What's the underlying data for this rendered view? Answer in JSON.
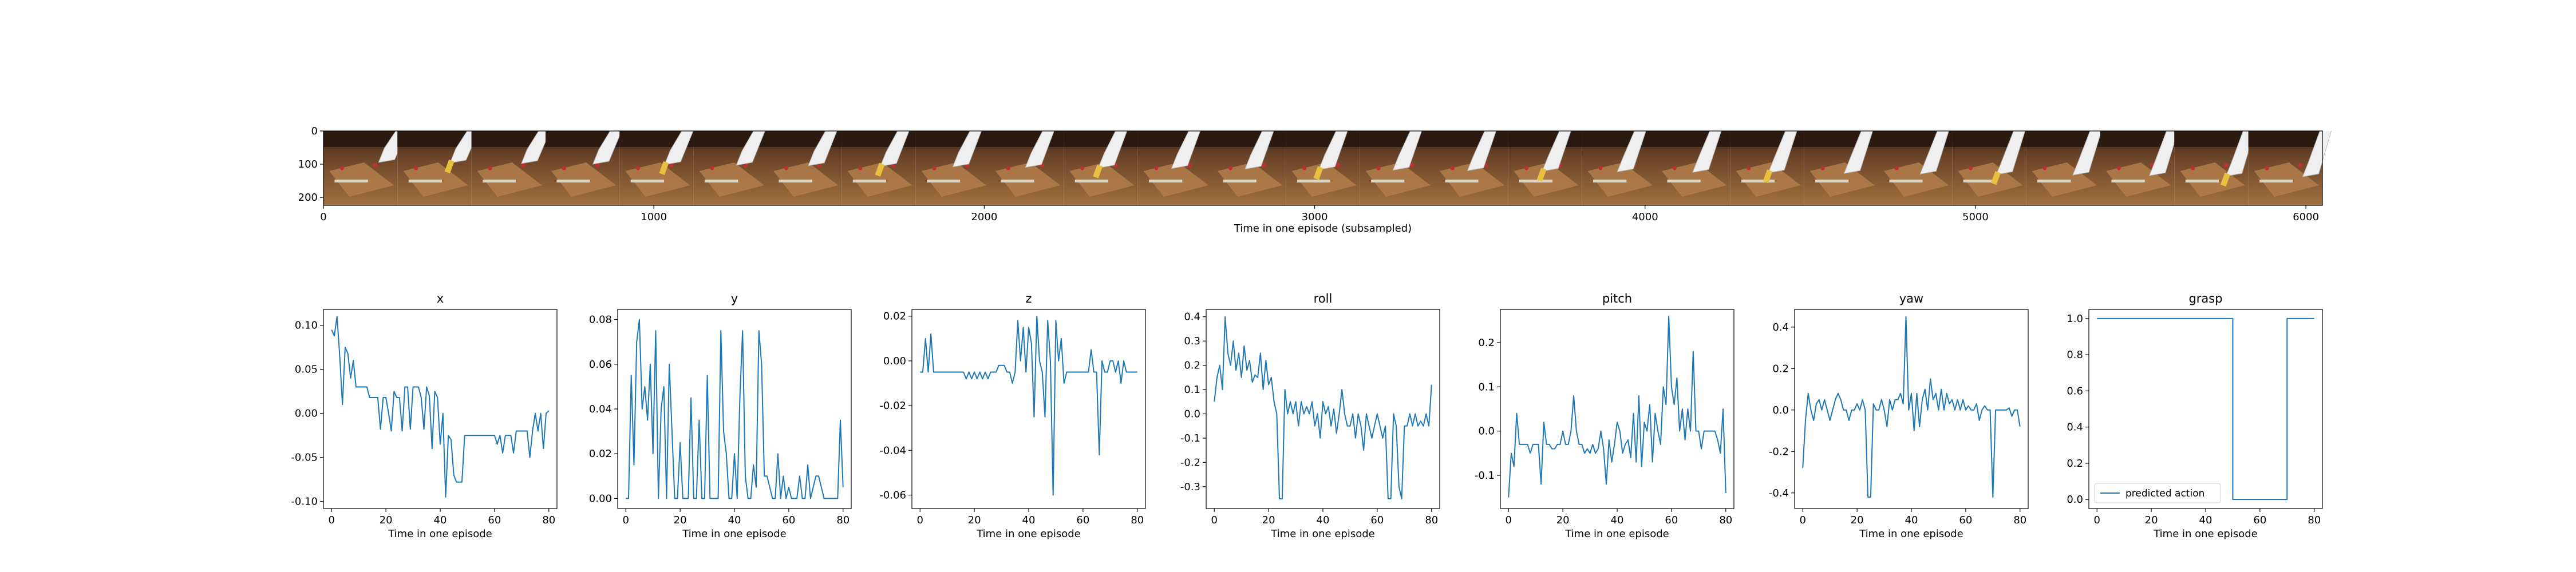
{
  "colors": {
    "line": "#1f77b4",
    "axes": "#000000",
    "background": "#ffffff"
  },
  "filmstrip": {
    "xlabel": "Time in one episode (subsampled)",
    "xticks": [
      "0",
      "1000",
      "2000",
      "3000",
      "4000",
      "5000",
      "6000"
    ],
    "yticks": [
      "0",
      "100",
      "200"
    ],
    "frame_count": 27,
    "image_desc": "camera frames of robot gripper over wooden table"
  },
  "chart_data": [
    {
      "type": "line",
      "title": "x",
      "xlabel": "Time in one episode",
      "ylabel": "",
      "xlim": [
        -3,
        83
      ],
      "ylim": [
        -0.108,
        0.118
      ],
      "xticks": [
        "0",
        "20",
        "40",
        "60",
        "80"
      ],
      "yticks": [
        "-0.10",
        "-0.05",
        "0.00",
        "0.05",
        "0.10"
      ],
      "x": [
        0,
        1,
        2,
        3,
        4,
        5,
        6,
        7,
        8,
        9,
        10,
        11,
        12,
        13,
        14,
        15,
        16,
        17,
        18,
        19,
        20,
        21,
        22,
        23,
        24,
        25,
        26,
        27,
        28,
        29,
        30,
        31,
        32,
        33,
        34,
        35,
        36,
        37,
        38,
        39,
        40,
        41,
        42,
        43,
        44,
        45,
        46,
        47,
        48,
        49,
        50,
        51,
        52,
        53,
        54,
        55,
        56,
        57,
        58,
        59,
        60,
        61,
        62,
        63,
        64,
        65,
        66,
        67,
        68,
        69,
        70,
        71,
        72,
        73,
        74,
        75,
        76,
        77,
        78,
        79,
        80
      ],
      "series": [
        {
          "values": [
            0.095,
            0.088,
            0.11,
            0.065,
            0.01,
            0.075,
            0.068,
            0.04,
            0.06,
            0.03,
            0.03,
            0.03,
            0.03,
            0.03,
            0.018,
            0.018,
            0.018,
            0.018,
            -0.018,
            0.018,
            0.018,
            0.0,
            -0.02,
            0.025,
            0.018,
            0.018,
            -0.02,
            0.03,
            0.03,
            -0.018,
            0.03,
            0.03,
            0.03,
            0.018,
            -0.018,
            0.03,
            0.02,
            -0.04,
            0.025,
            0.018,
            -0.035,
            0.0,
            -0.095,
            -0.025,
            -0.03,
            -0.07,
            -0.078,
            -0.078,
            -0.078,
            -0.025,
            -0.025,
            -0.025,
            -0.025,
            -0.025,
            -0.025,
            -0.025,
            -0.025,
            -0.025,
            -0.025,
            -0.025,
            -0.025,
            -0.035,
            -0.025,
            -0.045,
            -0.025,
            -0.025,
            -0.025,
            -0.045,
            -0.02,
            -0.02,
            -0.02,
            -0.02,
            -0.02,
            -0.05,
            -0.02,
            0.0,
            -0.02,
            0.0,
            -0.04,
            0.0,
            0.003
          ]
        }
      ]
    },
    {
      "type": "line",
      "title": "y",
      "xlabel": "Time in one episode",
      "ylabel": "",
      "xlim": [
        -3,
        83
      ],
      "ylim": [
        -0.0045,
        0.0845
      ],
      "xticks": [
        "0",
        "20",
        "40",
        "60",
        "80"
      ],
      "yticks": [
        "0.00",
        "0.02",
        "0.04",
        "0.06",
        "0.08"
      ],
      "x": [
        0,
        1,
        2,
        3,
        4,
        5,
        6,
        7,
        8,
        9,
        10,
        11,
        12,
        13,
        14,
        15,
        16,
        17,
        18,
        19,
        20,
        21,
        22,
        23,
        24,
        25,
        26,
        27,
        28,
        29,
        30,
        31,
        32,
        33,
        34,
        35,
        36,
        37,
        38,
        39,
        40,
        41,
        42,
        43,
        44,
        45,
        46,
        47,
        48,
        49,
        50,
        51,
        52,
        53,
        54,
        55,
        56,
        57,
        58,
        59,
        60,
        61,
        62,
        63,
        64,
        65,
        66,
        67,
        68,
        69,
        70,
        71,
        72,
        73,
        74,
        75,
        76,
        77,
        78,
        79,
        80
      ],
      "series": [
        {
          "values": [
            0.0,
            0.0,
            0.055,
            0.015,
            0.07,
            0.08,
            0.04,
            0.05,
            0.035,
            0.06,
            0.02,
            0.075,
            0.0,
            0.04,
            0.05,
            0.0,
            0.06,
            0.03,
            0.0,
            0.0,
            0.025,
            0.0,
            0.0,
            0.0,
            0.045,
            0.0,
            0.0,
            0.035,
            0.0,
            0.0,
            0.055,
            0.0,
            0.0,
            0.0,
            0.0,
            0.075,
            0.03,
            0.02,
            0.0,
            0.0,
            0.02,
            0.0,
            0.045,
            0.075,
            0.01,
            0.0,
            0.0,
            0.015,
            0.005,
            0.075,
            0.06,
            0.01,
            0.01,
            0.005,
            0.0,
            0.0,
            0.02,
            0.0,
            0.01,
            0.0,
            0.005,
            0.0,
            0.0,
            0.0,
            0.01,
            0.0,
            0.0,
            0.015,
            0.0,
            0.005,
            0.01,
            0.01,
            0.005,
            0.0,
            0.0,
            0.0,
            0.0,
            0.0,
            0.0,
            0.035,
            0.005
          ]
        }
      ]
    },
    {
      "type": "line",
      "title": "z",
      "xlabel": "Time in one episode",
      "ylabel": "",
      "xlim": [
        -3,
        83
      ],
      "ylim": [
        -0.066,
        0.023
      ],
      "xticks": [
        "0",
        "20",
        "40",
        "60",
        "80"
      ],
      "yticks": [
        "-0.06",
        "-0.04",
        "-0.02",
        "0.00",
        "0.02"
      ],
      "x": [
        0,
        1,
        2,
        3,
        4,
        5,
        6,
        7,
        8,
        9,
        10,
        11,
        12,
        13,
        14,
        15,
        16,
        17,
        18,
        19,
        20,
        21,
        22,
        23,
        24,
        25,
        26,
        27,
        28,
        29,
        30,
        31,
        32,
        33,
        34,
        35,
        36,
        37,
        38,
        39,
        40,
        41,
        42,
        43,
        44,
        45,
        46,
        47,
        48,
        49,
        50,
        51,
        52,
        53,
        54,
        55,
        56,
        57,
        58,
        59,
        60,
        61,
        62,
        63,
        64,
        65,
        66,
        67,
        68,
        69,
        70,
        71,
        72,
        73,
        74,
        75,
        76,
        77,
        78,
        79,
        80
      ],
      "series": [
        {
          "values": [
            -0.005,
            -0.005,
            0.01,
            -0.005,
            0.012,
            -0.005,
            -0.005,
            -0.005,
            -0.005,
            -0.005,
            -0.005,
            -0.005,
            -0.005,
            -0.005,
            -0.005,
            -0.005,
            -0.005,
            -0.008,
            -0.005,
            -0.008,
            -0.005,
            -0.008,
            -0.005,
            -0.008,
            -0.005,
            -0.008,
            -0.005,
            -0.005,
            -0.005,
            -0.002,
            -0.002,
            -0.002,
            -0.005,
            -0.005,
            -0.01,
            -0.005,
            0.018,
            0.0,
            0.015,
            -0.005,
            0.015,
            0.008,
            -0.025,
            0.02,
            0.0,
            -0.005,
            -0.025,
            0.018,
            0.0,
            -0.06,
            0.018,
            0.0,
            0.01,
            -0.01,
            -0.005,
            -0.005,
            -0.005,
            -0.005,
            -0.005,
            -0.005,
            -0.005,
            -0.005,
            -0.005,
            0.005,
            -0.005,
            -0.005,
            -0.042,
            0.0,
            -0.005,
            -0.005,
            0.0,
            0.0,
            -0.005,
            0.0,
            -0.01,
            0.0,
            -0.005,
            -0.005,
            -0.005,
            -0.005,
            -0.005
          ]
        }
      ]
    },
    {
      "type": "line",
      "title": "roll",
      "xlabel": "Time in one episode",
      "ylabel": "",
      "xlim": [
        -3,
        83
      ],
      "ylim": [
        -0.39,
        0.43
      ],
      "xticks": [
        "0",
        "20",
        "40",
        "60",
        "80"
      ],
      "yticks": [
        "-0.3",
        "-0.2",
        "-0.1",
        "0.0",
        "0.1",
        "0.2",
        "0.3",
        "0.4"
      ],
      "x": [
        0,
        1,
        2,
        3,
        4,
        5,
        6,
        7,
        8,
        9,
        10,
        11,
        12,
        13,
        14,
        15,
        16,
        17,
        18,
        19,
        20,
        21,
        22,
        23,
        24,
        25,
        26,
        27,
        28,
        29,
        30,
        31,
        32,
        33,
        34,
        35,
        36,
        37,
        38,
        39,
        40,
        41,
        42,
        43,
        44,
        45,
        46,
        47,
        48,
        49,
        50,
        51,
        52,
        53,
        54,
        55,
        56,
        57,
        58,
        59,
        60,
        61,
        62,
        63,
        64,
        65,
        66,
        67,
        68,
        69,
        70,
        71,
        72,
        73,
        74,
        75,
        76,
        77,
        78,
        79,
        80
      ],
      "series": [
        {
          "values": [
            0.05,
            0.15,
            0.2,
            0.1,
            0.4,
            0.25,
            0.2,
            0.3,
            0.18,
            0.25,
            0.15,
            0.28,
            0.18,
            0.22,
            0.13,
            0.16,
            0.15,
            0.25,
            0.1,
            0.22,
            0.12,
            0.15,
            0.05,
            0.0,
            -0.35,
            -0.35,
            0.1,
            0.0,
            0.05,
            0.0,
            0.05,
            -0.05,
            0.05,
            0.0,
            0.03,
            0.0,
            0.05,
            -0.05,
            0.0,
            -0.1,
            0.05,
            0.0,
            0.03,
            -0.05,
            0.02,
            -0.08,
            0.0,
            0.1,
            0.0,
            -0.05,
            -0.05,
            0.0,
            -0.1,
            0.0,
            -0.05,
            -0.15,
            0.0,
            -0.05,
            -0.1,
            -0.05,
            0.0,
            -0.05,
            -0.1,
            -0.05,
            -0.35,
            -0.35,
            0.0,
            -0.05,
            -0.3,
            -0.35,
            -0.05,
            -0.05,
            0.0,
            -0.05,
            0.0,
            -0.05,
            -0.03,
            -0.05,
            0.0,
            -0.05,
            0.12
          ]
        }
      ]
    },
    {
      "type": "line",
      "title": "pitch",
      "xlabel": "Time in one episode",
      "ylabel": "",
      "xlim": [
        -3,
        83
      ],
      "ylim": [
        -0.175,
        0.275
      ],
      "xticks": [
        "0",
        "20",
        "40",
        "60",
        "80"
      ],
      "yticks": [
        "-0.1",
        "0.0",
        "0.1",
        "0.2"
      ],
      "x": [
        0,
        1,
        2,
        3,
        4,
        5,
        6,
        7,
        8,
        9,
        10,
        11,
        12,
        13,
        14,
        15,
        16,
        17,
        18,
        19,
        20,
        21,
        22,
        23,
        24,
        25,
        26,
        27,
        28,
        29,
        30,
        31,
        32,
        33,
        34,
        35,
        36,
        37,
        38,
        39,
        40,
        41,
        42,
        43,
        44,
        45,
        46,
        47,
        48,
        49,
        50,
        51,
        52,
        53,
        54,
        55,
        56,
        57,
        58,
        59,
        60,
        61,
        62,
        63,
        64,
        65,
        66,
        67,
        68,
        69,
        70,
        71,
        72,
        73,
        74,
        75,
        76,
        77,
        78,
        79,
        80
      ],
      "series": [
        {
          "values": [
            -0.15,
            -0.05,
            -0.08,
            0.04,
            -0.03,
            -0.03,
            -0.03,
            -0.03,
            -0.05,
            -0.03,
            -0.03,
            -0.03,
            -0.12,
            0.02,
            -0.03,
            -0.03,
            -0.04,
            -0.04,
            -0.03,
            -0.03,
            0.0,
            -0.03,
            -0.03,
            0.0,
            0.08,
            0.0,
            -0.03,
            -0.03,
            -0.05,
            -0.04,
            -0.05,
            -0.03,
            -0.05,
            -0.04,
            0.0,
            -0.04,
            -0.12,
            -0.02,
            -0.07,
            -0.03,
            0.02,
            0.0,
            -0.05,
            -0.03,
            -0.02,
            -0.06,
            0.04,
            -0.07,
            0.08,
            -0.08,
            0.02,
            0.0,
            0.06,
            -0.07,
            0.04,
            0.0,
            -0.03,
            0.1,
            0.06,
            0.26,
            0.1,
            0.06,
            0.12,
            0.0,
            0.05,
            -0.02,
            0.05,
            0.0,
            0.18,
            0.0,
            0.0,
            -0.04,
            0.0,
            0.0,
            0.0,
            0.0,
            0.0,
            -0.02,
            -0.05,
            0.05,
            -0.14
          ]
        }
      ]
    },
    {
      "type": "line",
      "title": "yaw",
      "xlabel": "Time in one episode",
      "ylabel": "",
      "xlim": [
        -3,
        83
      ],
      "ylim": [
        -0.475,
        0.485
      ],
      "xticks": [
        "0",
        "20",
        "40",
        "60",
        "80"
      ],
      "yticks": [
        "-0.4",
        "-0.2",
        "0.0",
        "0.2",
        "0.4"
      ],
      "x": [
        0,
        1,
        2,
        3,
        4,
        5,
        6,
        7,
        8,
        9,
        10,
        11,
        12,
        13,
        14,
        15,
        16,
        17,
        18,
        19,
        20,
        21,
        22,
        23,
        24,
        25,
        26,
        27,
        28,
        29,
        30,
        31,
        32,
        33,
        34,
        35,
        36,
        37,
        38,
        39,
        40,
        41,
        42,
        43,
        44,
        45,
        46,
        47,
        48,
        49,
        50,
        51,
        52,
        53,
        54,
        55,
        56,
        57,
        58,
        59,
        60,
        61,
        62,
        63,
        64,
        65,
        66,
        67,
        68,
        69,
        70,
        71,
        72,
        73,
        74,
        75,
        76,
        77,
        78,
        79,
        80
      ],
      "series": [
        {
          "values": [
            -0.28,
            -0.05,
            0.08,
            0.0,
            -0.05,
            0.03,
            0.05,
            0.0,
            0.05,
            0.0,
            -0.05,
            0.0,
            0.05,
            0.08,
            0.05,
            0.0,
            0.0,
            -0.05,
            0.0,
            0.0,
            0.03,
            0.0,
            0.05,
            0.0,
            -0.42,
            -0.42,
            0.03,
            0.0,
            0.0,
            0.05,
            0.0,
            -0.08,
            0.05,
            0.0,
            0.05,
            0.05,
            0.08,
            0.03,
            0.45,
            0.0,
            0.08,
            -0.1,
            0.08,
            -0.08,
            0.05,
            0.1,
            0.0,
            0.15,
            0.05,
            0.08,
            0.0,
            0.1,
            0.0,
            0.08,
            0.03,
            0.05,
            0.0,
            0.05,
            0.0,
            0.05,
            0.0,
            0.02,
            0.0,
            0.0,
            0.03,
            -0.05,
            0.0,
            0.02,
            0.0,
            0.0,
            -0.42,
            0.0,
            0.0,
            0.0,
            0.0,
            0.0,
            0.01,
            -0.03,
            0.0,
            0.0,
            -0.08
          ]
        }
      ]
    },
    {
      "type": "line",
      "title": "grasp",
      "xlabel": "Time in one episode",
      "ylabel": "",
      "xlim": [
        -3,
        83
      ],
      "ylim": [
        -0.05,
        1.05
      ],
      "xticks": [
        "0",
        "20",
        "40",
        "60",
        "80"
      ],
      "yticks": [
        "0.0",
        "0.2",
        "0.4",
        "0.6",
        "0.8",
        "1.0"
      ],
      "x": [
        0,
        50,
        50,
        70,
        70,
        80
      ],
      "series": [
        {
          "name": "predicted action",
          "values": [
            1,
            1,
            0,
            0,
            1,
            1
          ]
        }
      ],
      "legend_loc": "lower-left"
    }
  ]
}
